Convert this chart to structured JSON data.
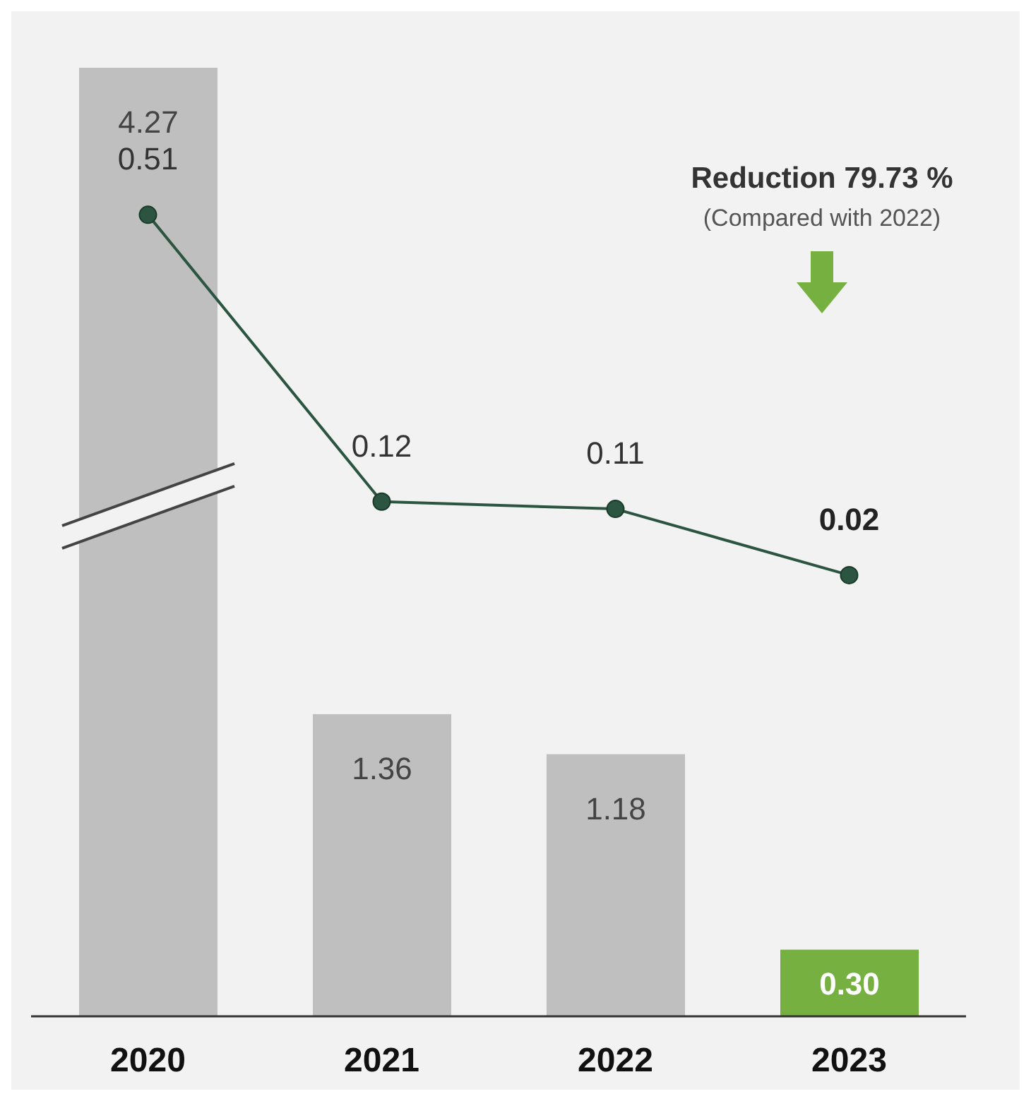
{
  "chart_data": {
    "type": "bar",
    "categories": [
      "2020",
      "2021",
      "2022",
      "2023"
    ],
    "tick_labels": "x",
    "grid": false,
    "legend": false,
    "marker": "circle",
    "series": [
      {
        "colors": [
          "#bfbfbf",
          "#bfbfbf",
          "#bfbfbf",
          "#76b041"
        ],
        "values": [
          4.27,
          1.36,
          1.18,
          0.3
        ],
        "value_labels": [
          "4.27",
          "1.36",
          "1.18",
          "0.30"
        ]
      },
      {
        "type": "line",
        "axis": "y2",
        "color": "#2b5540",
        "values": [
          0.51,
          0.12,
          0.11,
          0.02
        ],
        "value_labels": [
          "0.51",
          "0.12",
          "0.11",
          "0.02"
        ]
      }
    ],
    "annotations": [
      "Reduction 79.73 %",
      "(Compared with 2022)"
    ]
  }
}
